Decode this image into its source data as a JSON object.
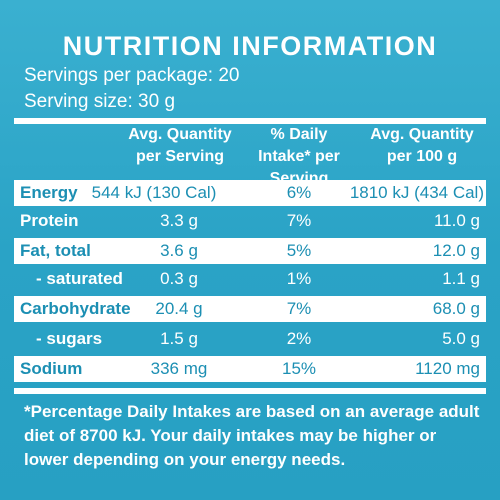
{
  "panel": {
    "title": "NUTRITION INFORMATION",
    "servings_per_package": "Servings per package: 20",
    "serving_size": "Serving size: 30 g"
  },
  "columns": {
    "per_serving": "Avg. Quantity per Serving",
    "daily_intake": "% Daily Intake* per Serving",
    "per_100g": "Avg. Quantity per 100 g"
  },
  "rows": [
    {
      "name": "Energy",
      "per_serving": "544 kJ (130 Cal)",
      "daily_intake": "6%",
      "per_100g": "1810 kJ (434 Cal)",
      "shaded": true,
      "indent": false
    },
    {
      "name": "Protein",
      "per_serving": "3.3 g",
      "daily_intake": "7%",
      "per_100g": "11.0 g",
      "shaded": false,
      "indent": false
    },
    {
      "name": "Fat, total",
      "per_serving": "3.6 g",
      "daily_intake": "5%",
      "per_100g": "12.0 g",
      "shaded": true,
      "indent": false
    },
    {
      "name": "- saturated",
      "per_serving": "0.3 g",
      "daily_intake": "1%",
      "per_100g": "1.1 g",
      "shaded": false,
      "indent": true
    },
    {
      "name": "Carbohydrate",
      "per_serving": "20.4 g",
      "daily_intake": "7%",
      "per_100g": "68.0 g",
      "shaded": true,
      "indent": false
    },
    {
      "name": "- sugars",
      "per_serving": "1.5 g",
      "daily_intake": "2%",
      "per_100g": "5.0 g",
      "shaded": false,
      "indent": true
    },
    {
      "name": "Sodium",
      "per_serving": "336 mg",
      "daily_intake": "15%",
      "per_100g": "1120 mg",
      "shaded": true,
      "indent": false
    }
  ],
  "footnote": "*Percentage Daily Intakes are based on an average adult diet of 8700 kJ. Your daily intakes may be higher or lower depending on your energy needs.",
  "colors": {
    "background": "#2aa3c6",
    "shaded_row": "#ffffff",
    "shaded_text": "#1c8fb3",
    "text": "#ffffff"
  }
}
